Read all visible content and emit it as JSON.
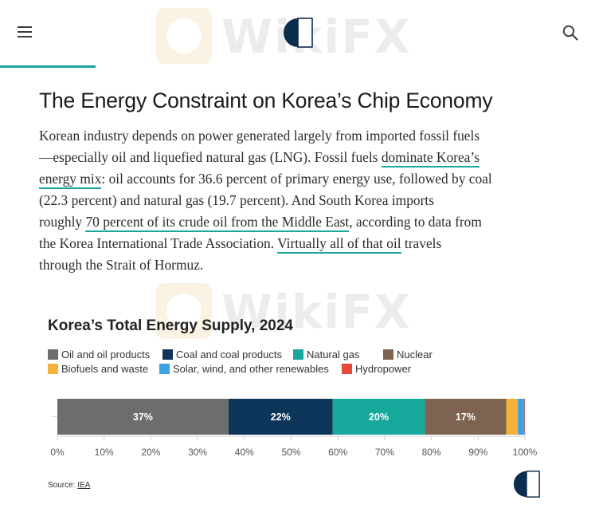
{
  "header": {
    "menu_icon": "hamburger-menu-icon",
    "search_icon": "search-icon",
    "logo_icon": "brand-logo-icon",
    "accent_color": "#18a79a",
    "brand_color": "#0d2d4f"
  },
  "watermark": {
    "text": "WikiFX"
  },
  "article": {
    "headline": "The Energy Constraint on Korea’s Chip Economy",
    "lines": [
      [
        "Korean industry depends on power generated largely from imported fossil fuels"
      ],
      [
        "—especially oil and liquefied natural gas (LNG). Fossil fuels ",
        {
          "link": "dominate Korea’s"
        }
      ],
      [
        {
          "link": "energy mix"
        },
        ": oil accounts for 36.6 percent of primary energy use, followed by coal"
      ],
      [
        "(22.3 percent) and natural gas (19.7 percent). And South Korea imports"
      ],
      [
        "roughly ",
        {
          "link": "70 percent of its crude oil from the Middle East"
        },
        ", according to data from"
      ],
      [
        "the Korea International Trade Association. ",
        {
          "link": "Virtually all of that oil"
        },
        " travels"
      ],
      [
        "through the Strait of Hormuz."
      ]
    ]
  },
  "chart_data": {
    "type": "bar",
    "orientation": "horizontal-stacked-100",
    "title": "Korea’s Total Energy Supply, 2024",
    "xlabel": "",
    "ylabel": "",
    "xlim": [
      0,
      100
    ],
    "x_ticks": [
      "0%",
      "10%",
      "20%",
      "30%",
      "40%",
      "50%",
      "60%",
      "70%",
      "80%",
      "90%",
      "100%"
    ],
    "grid": false,
    "legend_position": "top",
    "series": [
      {
        "name": "Oil and oil products",
        "value": 36.6,
        "label": "37%",
        "color": "#6d6d6d"
      },
      {
        "name": "Coal and coal products",
        "value": 22.3,
        "label": "22%",
        "color": "#0d3559"
      },
      {
        "name": "Natural gas",
        "value": 19.7,
        "label": "20%",
        "color": "#16a89b"
      },
      {
        "name": "Nuclear",
        "value": 17.4,
        "label": "17%",
        "color": "#7d6350"
      },
      {
        "name": "Biofuels and waste",
        "value": 2.5,
        "label": "",
        "color": "#f5b13d"
      },
      {
        "name": "Solar, wind, and other renewables",
        "value": 1.4,
        "label": "",
        "color": "#3aa3e3"
      },
      {
        "name": "Hydropower",
        "value": 0.1,
        "label": "",
        "color": "#e84a3a"
      }
    ]
  },
  "source": {
    "prefix": "Source: ",
    "link": "IEA"
  }
}
